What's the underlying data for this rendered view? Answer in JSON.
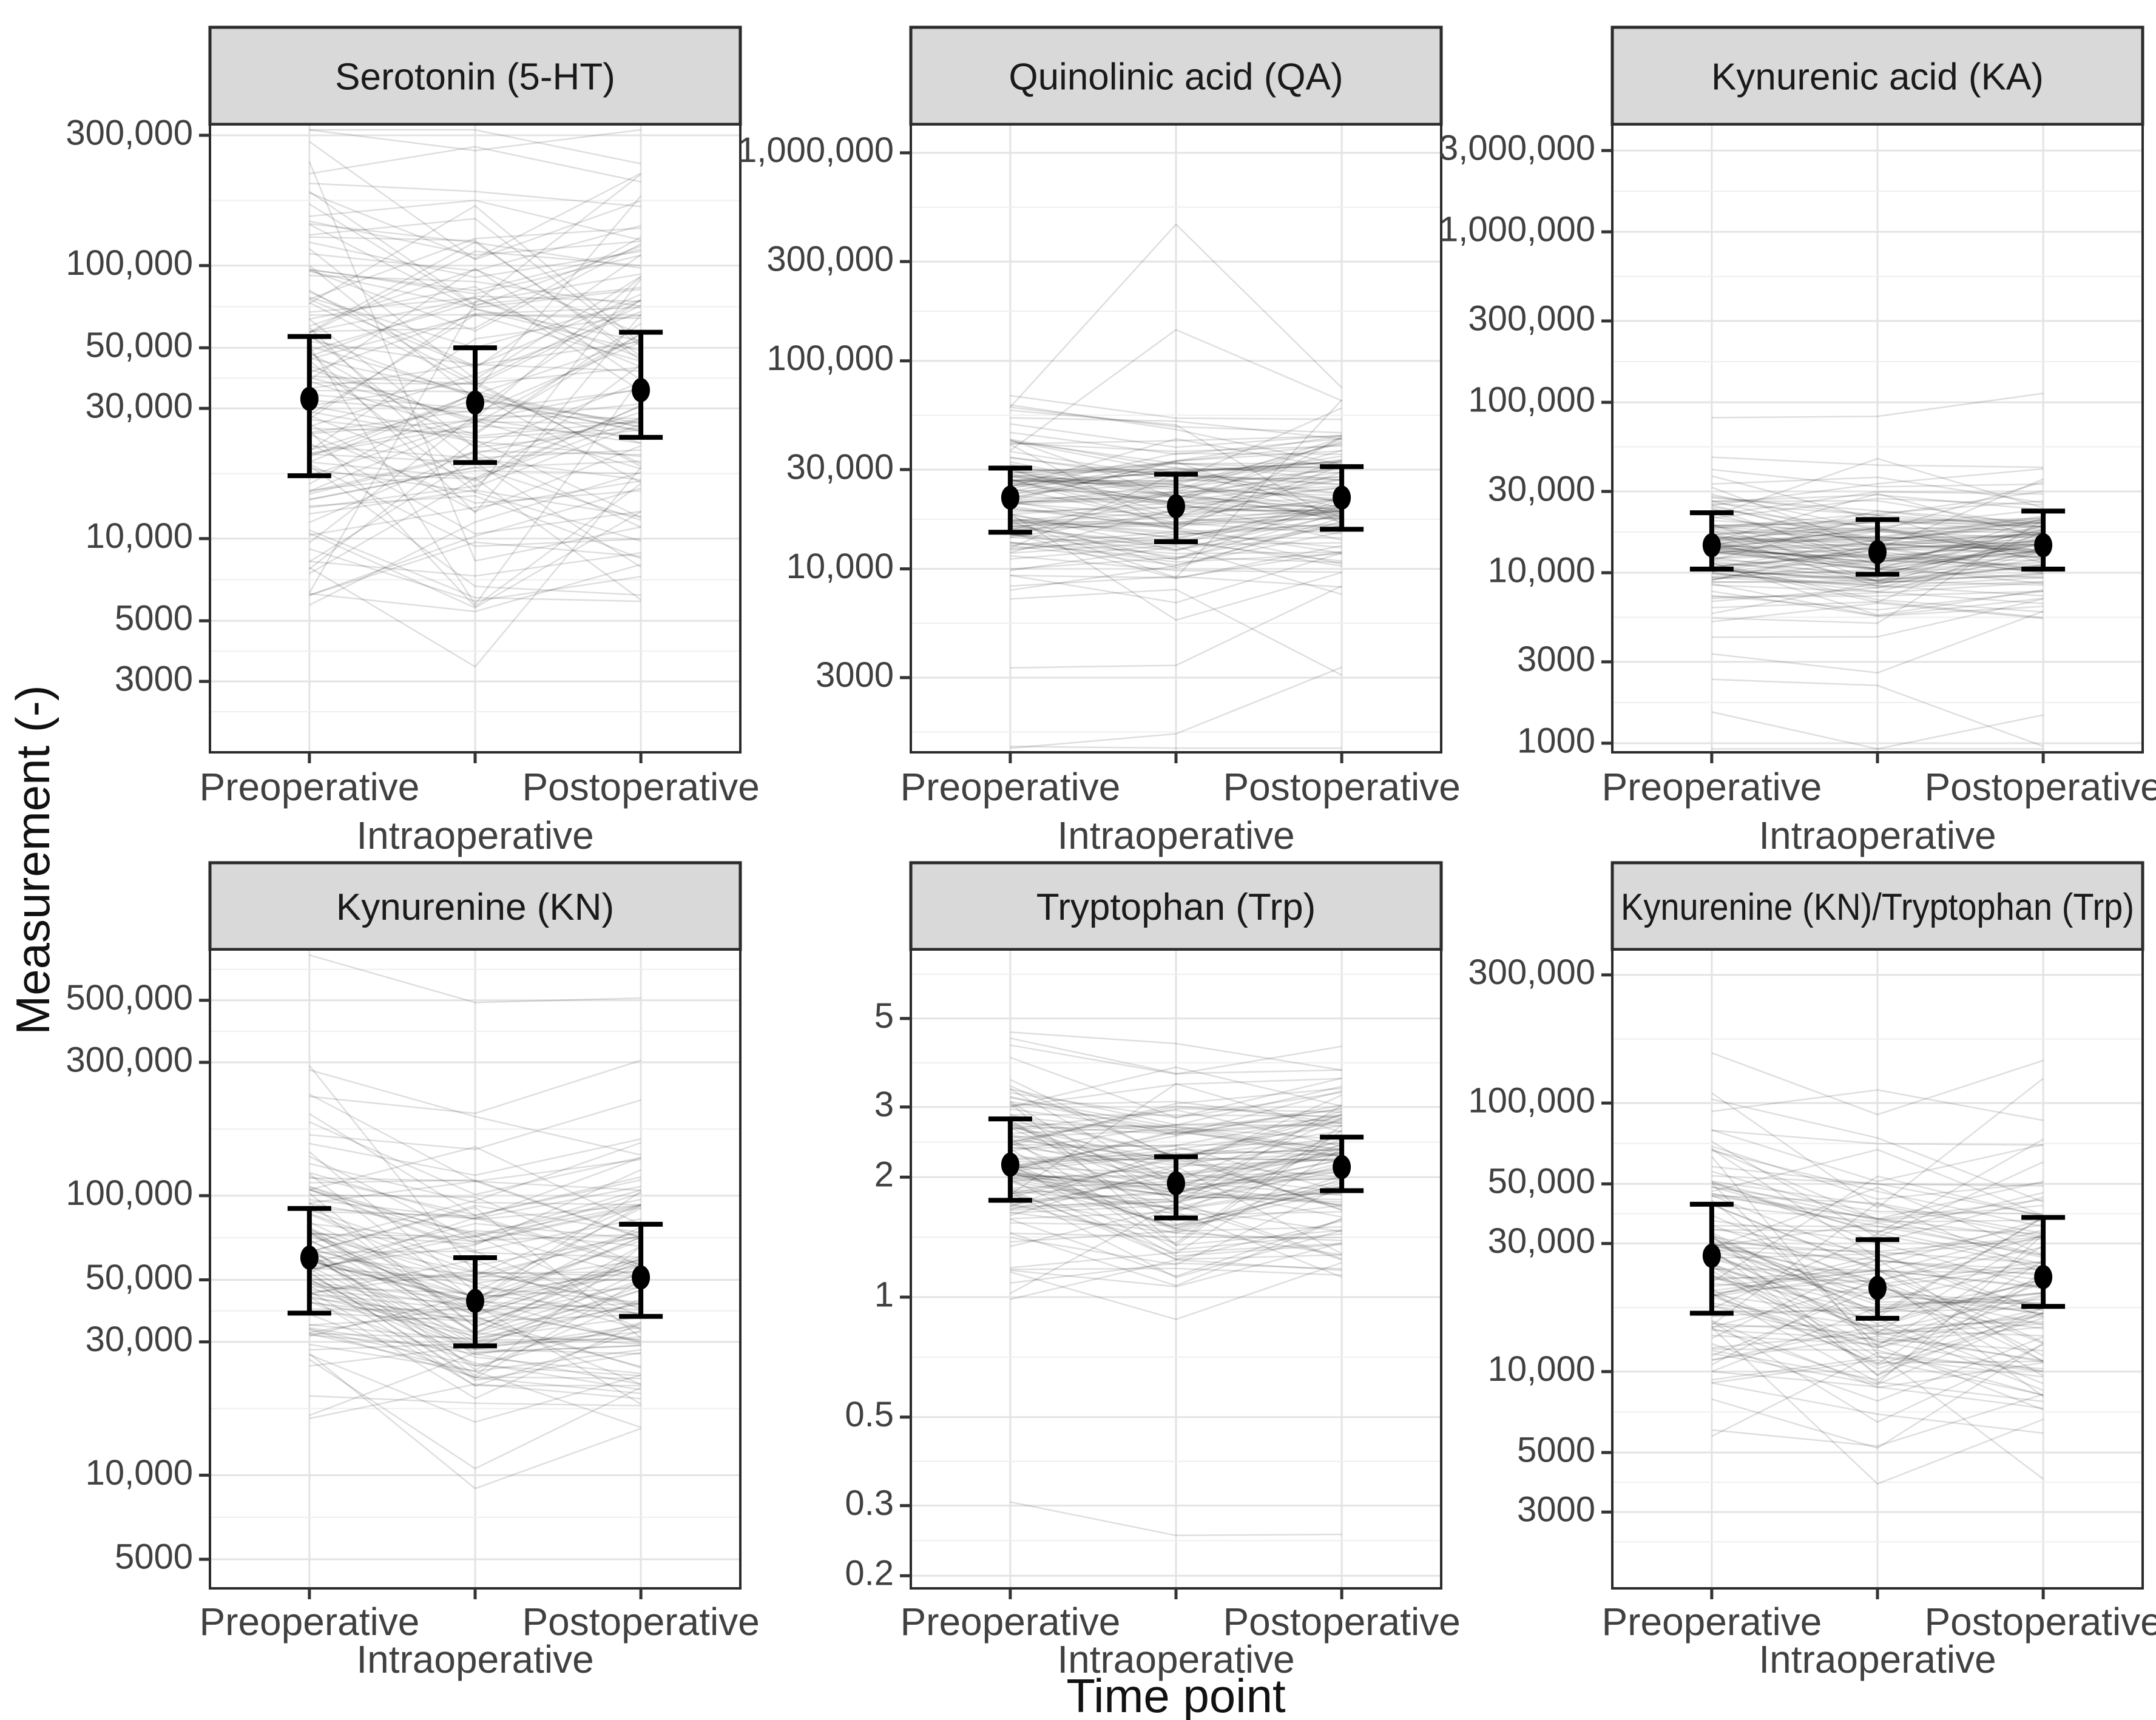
{
  "chart_data": {
    "type": "line",
    "subtype": "faceted-spaghetti-with-mean-errorbars",
    "layout": {
      "rows": 2,
      "cols": 3,
      "grid": true,
      "legend": "none",
      "y_scale": "log10"
    },
    "xlabel": "Time point",
    "ylabel": "Measurement (-)",
    "x_categories": [
      "Preoperative",
      "Intraoperative",
      "Postoperative"
    ],
    "colors": {
      "strip_fill": "#d9d9d9",
      "panel_border": "#2b2b2b",
      "grid_major": "#e3e3e3",
      "grid_minor": "#efefef",
      "subject_line": "rgba(0,0,0,0.13)",
      "mean": "#000000",
      "tick_text": "#404040",
      "title_text": "#1a1a1a"
    },
    "panels": [
      {
        "title": "Serotonin (5-HT)",
        "y_domain": [
          1650,
          329000
        ],
        "y_ticks": [
          {
            "value": 300000,
            "label": "300,000"
          },
          {
            "value": 100000,
            "label": "100,000"
          },
          {
            "value": 50000,
            "label": "50,000"
          },
          {
            "value": 30000,
            "label": "30,000"
          },
          {
            "value": 10000,
            "label": "10,000"
          },
          {
            "value": 5000,
            "label": "5000"
          },
          {
            "value": 3000,
            "label": "3000"
          }
        ],
        "mean": [
          32500,
          31500,
          35000
        ],
        "lower": [
          17000,
          19000,
          23500
        ],
        "upper": [
          55000,
          50000,
          57000
        ],
        "individual_lines": {
          "n": 120,
          "log10_mean": [
            4.52,
            4.5,
            4.55
          ],
          "log10_sd_subject": 0.3,
          "log10_sd_time": 0.17,
          "outlier_fraction": 0.07,
          "outlier_sd_multiplier": 2.2,
          "seed": 11
        }
      },
      {
        "title": "Quinolinic acid (QA)",
        "y_domain": [
          1312,
          1370000
        ],
        "y_ticks": [
          {
            "value": 1000000,
            "label": "1,000,000"
          },
          {
            "value": 300000,
            "label": "300,000"
          },
          {
            "value": 100000,
            "label": "100,000"
          },
          {
            "value": 30000,
            "label": "30,000"
          },
          {
            "value": 10000,
            "label": "10,000"
          },
          {
            "value": 3000,
            "label": "3000"
          }
        ],
        "mean": [
          22000,
          20000,
          22000
        ],
        "lower": [
          15000,
          13500,
          15500
        ],
        "upper": [
          30500,
          28500,
          31000
        ],
        "individual_lines": {
          "n": 120,
          "log10_mean": [
            4.33,
            4.3,
            4.33
          ],
          "log10_sd_subject": 0.16,
          "log10_sd_time": 0.09,
          "outlier_fraction": 0.08,
          "outlier_sd_multiplier": 3.2,
          "seed": 22
        }
      },
      {
        "title": "Kynurenic acid (KA)",
        "y_domain": [
          884,
          4270000
        ],
        "y_ticks": [
          {
            "value": 3000000,
            "label": "3,000,000"
          },
          {
            "value": 1000000,
            "label": "1,000,000"
          },
          {
            "value": 300000,
            "label": "300,000"
          },
          {
            "value": 100000,
            "label": "100,000"
          },
          {
            "value": 30000,
            "label": "30,000"
          },
          {
            "value": 10000,
            "label": "10,000"
          },
          {
            "value": 3000,
            "label": "3000"
          },
          {
            "value": 1000,
            "label": "1000"
          }
        ],
        "mean": [
          14500,
          13200,
          14500
        ],
        "lower": [
          10500,
          9800,
          10500
        ],
        "upper": [
          22500,
          20500,
          23000
        ],
        "individual_lines": {
          "n": 120,
          "log10_mean": [
            4.16,
            4.11,
            4.16
          ],
          "log10_sd_subject": 0.17,
          "log10_sd_time": 0.1,
          "outlier_fraction": 0.07,
          "outlier_sd_multiplier": 3.6,
          "seed": 33
        }
      },
      {
        "title": "Kynurenine (KN)",
        "y_domain": [
          3936,
          760000
        ],
        "y_ticks": [
          {
            "value": 500000,
            "label": "500,000"
          },
          {
            "value": 300000,
            "label": "300,000"
          },
          {
            "value": 100000,
            "label": "100,000"
          },
          {
            "value": 50000,
            "label": "50,000"
          },
          {
            "value": 30000,
            "label": "30,000"
          },
          {
            "value": 10000,
            "label": "10,000"
          },
          {
            "value": 5000,
            "label": "5000"
          }
        ],
        "mean": [
          60000,
          42000,
          51000
        ],
        "lower": [
          38000,
          29000,
          37000
        ],
        "upper": [
          90000,
          60000,
          79000
        ],
        "individual_lines": {
          "n": 120,
          "log10_mean": [
            4.78,
            4.62,
            4.71
          ],
          "log10_sd_subject": 0.2,
          "log10_sd_time": 0.12,
          "outlier_fraction": 0.06,
          "outlier_sd_multiplier": 2.3,
          "seed": 44
        }
      },
      {
        "title": "Tryptophan (Trp)",
        "y_domain": [
          0.186,
          7.45
        ],
        "y_ticks": [
          {
            "value": 5,
            "label": "5"
          },
          {
            "value": 3,
            "label": "3"
          },
          {
            "value": 2,
            "label": "2"
          },
          {
            "value": 1,
            "label": "1"
          },
          {
            "value": 0.5,
            "label": "0.5"
          },
          {
            "value": 0.3,
            "label": "0.3"
          },
          {
            "value": 0.2,
            "label": "0.2"
          }
        ],
        "mean": [
          2.15,
          1.93,
          2.12
        ],
        "lower": [
          1.75,
          1.58,
          1.85
        ],
        "upper": [
          2.8,
          2.25,
          2.52
        ],
        "individual_lines": {
          "n": 120,
          "log10_mean": [
            0.332,
            0.286,
            0.327
          ],
          "log10_sd_subject": 0.11,
          "log10_sd_time": 0.07,
          "outlier_fraction": 0.06,
          "outlier_sd_multiplier": 2.4,
          "seed": 55
        }
      },
      {
        "title": "Kynurenine (KN)/Tryptophan (Trp)",
        "y_domain": [
          1560,
          373000
        ],
        "y_ticks": [
          {
            "value": 300000,
            "label": "300,000"
          },
          {
            "value": 100000,
            "label": "100,000"
          },
          {
            "value": 50000,
            "label": "50,000"
          },
          {
            "value": 30000,
            "label": "30,000"
          },
          {
            "value": 10000,
            "label": "10,000"
          },
          {
            "value": 5000,
            "label": "5000"
          },
          {
            "value": 3000,
            "label": "3000"
          }
        ],
        "mean": [
          27000,
          20500,
          22500
        ],
        "lower": [
          16500,
          15800,
          17500
        ],
        "upper": [
          42000,
          31000,
          37500
        ],
        "individual_lines": {
          "n": 120,
          "log10_mean": [
            4.42,
            4.31,
            4.34
          ],
          "log10_sd_subject": 0.21,
          "log10_sd_time": 0.12,
          "outlier_fraction": 0.06,
          "outlier_sd_multiplier": 2.2,
          "seed": 66
        }
      }
    ]
  }
}
